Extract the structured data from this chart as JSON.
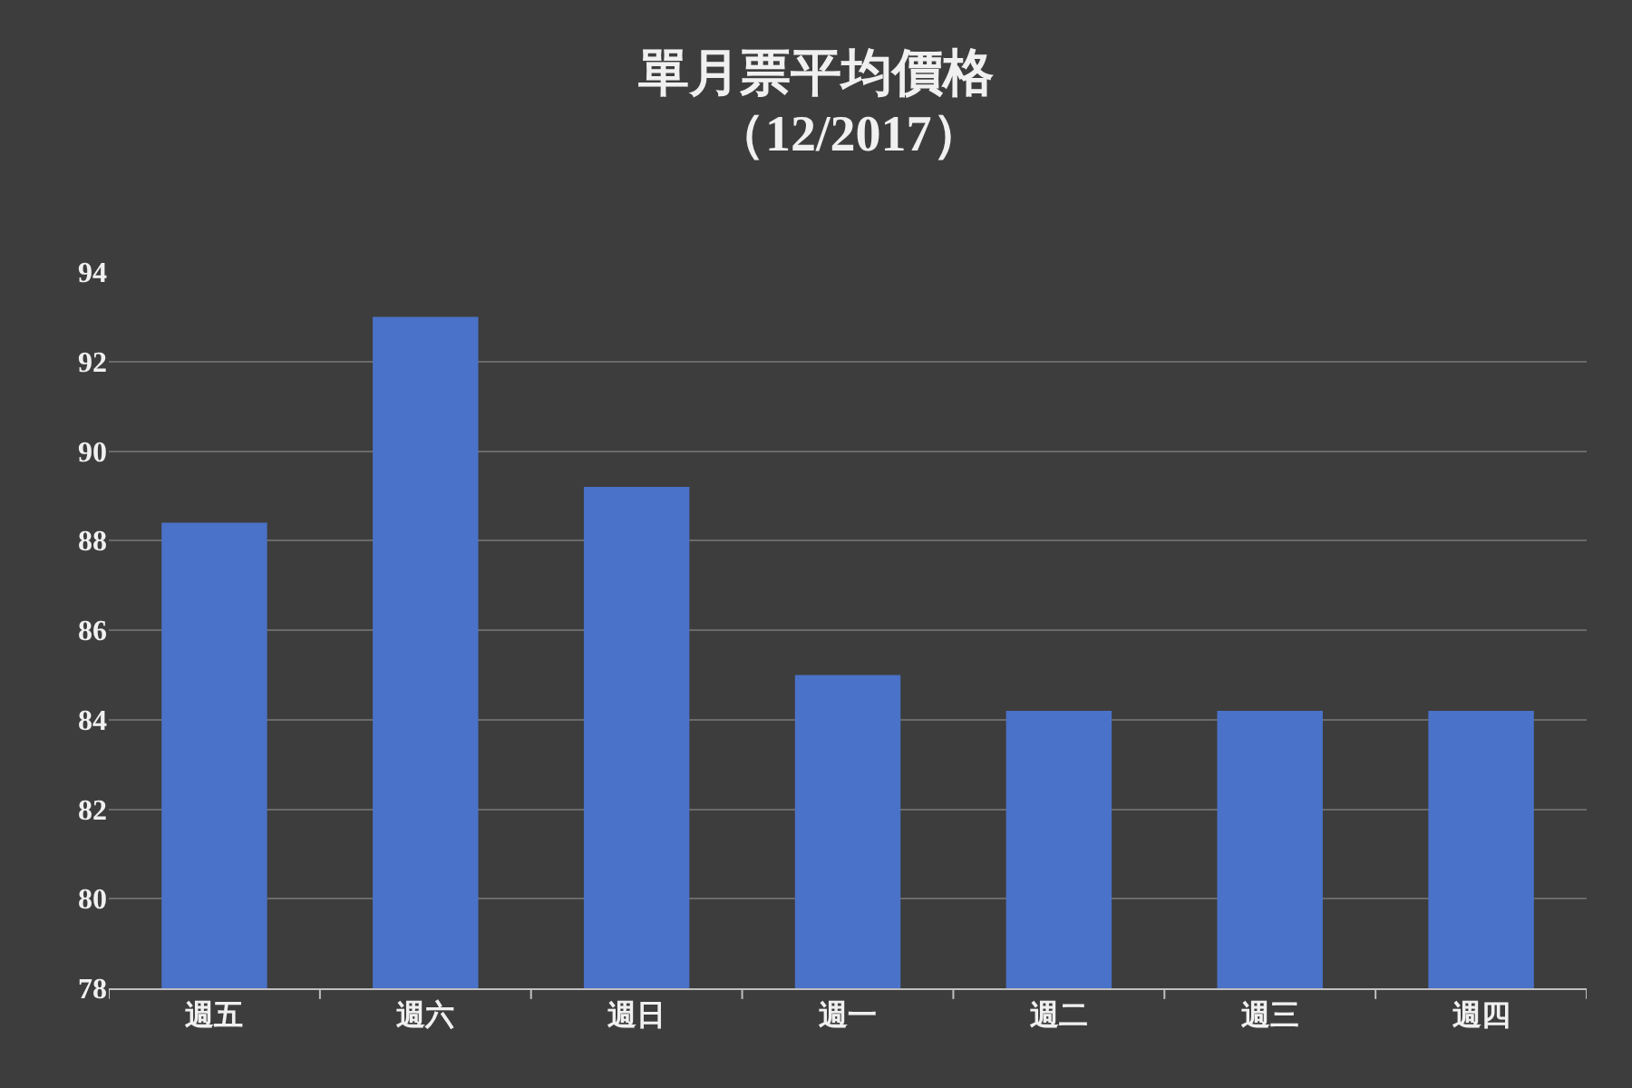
{
  "chart_data": {
    "type": "bar",
    "title": "單月票平均價格",
    "subtitle": "（12/2017）",
    "categories": [
      "週五",
      "週六",
      "週日",
      "週一",
      "週二",
      "週三",
      "週四"
    ],
    "values": [
      88.4,
      93.0,
      89.2,
      85.0,
      84.2,
      84.2,
      84.2
    ],
    "color": "#4a72c8",
    "ylim": [
      78,
      94
    ],
    "yticks": [
      78,
      80,
      82,
      84,
      86,
      88,
      90,
      92,
      94
    ],
    "grid": "y"
  }
}
